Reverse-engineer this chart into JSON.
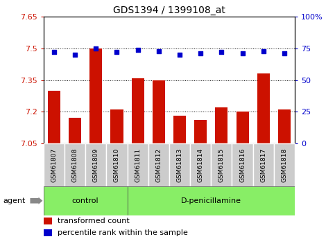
{
  "title": "GDS1394 / 1399108_at",
  "samples": [
    "GSM61807",
    "GSM61808",
    "GSM61809",
    "GSM61810",
    "GSM61811",
    "GSM61812",
    "GSM61813",
    "GSM61814",
    "GSM61815",
    "GSM61816",
    "GSM61817",
    "GSM61818"
  ],
  "bar_values": [
    7.3,
    7.17,
    7.5,
    7.21,
    7.36,
    7.35,
    7.18,
    7.16,
    7.22,
    7.2,
    7.38,
    7.21
  ],
  "percentile_values": [
    72,
    70,
    75,
    72,
    74,
    73,
    70,
    71,
    72,
    71,
    73,
    71
  ],
  "ylim_left": [
    7.05,
    7.65
  ],
  "ylim_right": [
    0,
    100
  ],
  "yticks_left": [
    7.05,
    7.2,
    7.35,
    7.5,
    7.65
  ],
  "yticks_right": [
    0,
    25,
    50,
    75,
    100
  ],
  "ytick_labels_left": [
    "7.05",
    "7.2",
    "7.35",
    "7.5",
    "7.65"
  ],
  "ytick_labels_right": [
    "0",
    "25",
    "50",
    "75",
    "100%"
  ],
  "hlines": [
    7.2,
    7.35,
    7.5
  ],
  "bar_color": "#cc1100",
  "dot_color": "#0000cc",
  "control_samples": 4,
  "control_label": "control",
  "treatment_label": "D-penicillamine",
  "agent_label": "agent",
  "legend_bar_label": "transformed count",
  "legend_dot_label": "percentile rank within the sample",
  "tick_bg": "#cccccc",
  "group_bg": "#88ee66"
}
